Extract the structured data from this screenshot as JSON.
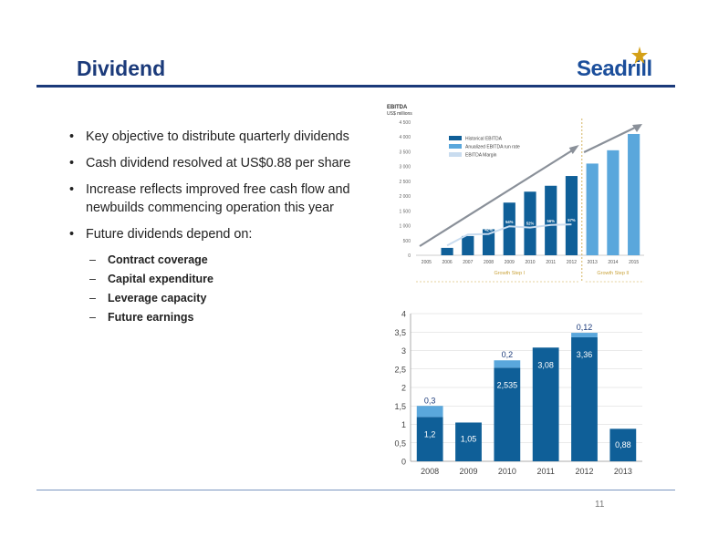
{
  "slide": {
    "title": "Dividend",
    "logo_text": "Seadrill",
    "page_number": "11",
    "bullets": [
      "Key objective to distribute quarterly dividends",
      "Cash dividend resolved at US$0.88 per share",
      "Increase reflects improved free cash flow and newbuilds commencing operation this year",
      "Future dividends depend on:"
    ],
    "sub_bullets": [
      "Contract coverage",
      "Capital expenditure",
      "Leverage capacity",
      "Future earnings"
    ]
  },
  "colors": {
    "title": "#1b3a7a",
    "dark_bar": "#0f5f98",
    "light_bar": "#5aa7dc",
    "arrow": "#8a9099",
    "gold": "#c9a23a"
  },
  "chart_data": [
    {
      "type": "bar",
      "title": "EBITDA",
      "ylabel": "US$ millions",
      "categories": [
        "2005",
        "2006",
        "2007",
        "2008",
        "2009",
        "2010",
        "2011",
        "2012",
        "2013",
        "2014",
        "2015"
      ],
      "ylim": [
        0,
        4500
      ],
      "yticks": [
        "0",
        "500",
        "1 000",
        "1 500",
        "2 000",
        "2 500",
        "3 000",
        "3 500",
        "4 000",
        "4 500"
      ],
      "series": [
        {
          "name": "Historical EBITDA",
          "values": [
            null,
            250,
            650,
            880,
            1780,
            2150,
            2350,
            2680,
            null,
            null,
            null
          ]
        },
        {
          "name": "Anualized EBITDA run rate",
          "values": [
            null,
            null,
            null,
            null,
            null,
            null,
            null,
            null,
            3100,
            3550,
            4100
          ]
        },
        {
          "name": "EBITDA Margin",
          "values": [
            null,
            24,
            41,
            42,
            54,
            52,
            56,
            57,
            null,
            null,
            null
          ]
        }
      ],
      "margin_labels": [
        "24%",
        "41%",
        "42%",
        "54%",
        "52%",
        "56%",
        "57%"
      ],
      "groups": [
        "Growth Step I",
        "Growth Step II"
      ],
      "legend": "top-left"
    },
    {
      "type": "bar",
      "categories": [
        "2008",
        "2009",
        "2010",
        "2011",
        "2012",
        "2013"
      ],
      "ylim": [
        0,
        4
      ],
      "yticks": [
        "0",
        "0,5",
        "1",
        "1,5",
        "2",
        "2,5",
        "3",
        "3,5",
        "4"
      ],
      "series": [
        {
          "values": [
            1.2,
            1.05,
            2.535,
            3.08,
            3.36,
            0.88
          ]
        },
        {
          "values": [
            0.3,
            null,
            0.2,
            null,
            0.12,
            null
          ]
        }
      ],
      "base_labels": [
        "1,2",
        "1,05",
        "2,535",
        "3,08",
        "3,36",
        "0,88"
      ],
      "top_labels": [
        "0,3",
        "",
        "0,2",
        "",
        "0,12",
        ""
      ]
    }
  ]
}
